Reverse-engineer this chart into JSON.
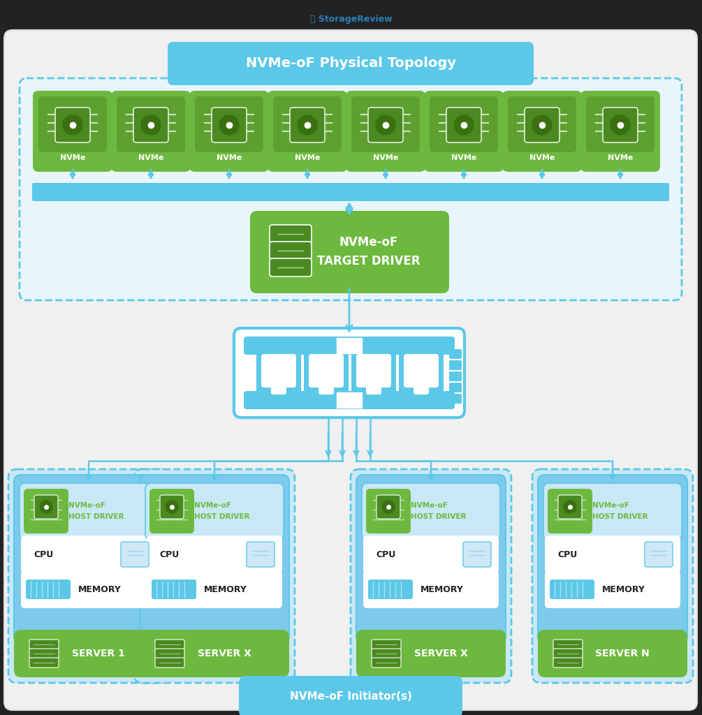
{
  "bg_outer": "#222222",
  "bg_main": "#e8e8e8",
  "title": "NVMe-oF Physical Topology",
  "title_bg": "#5bc8e8",
  "white": "#ffffff",
  "green": "#6db93f",
  "green_dark": "#4a8a20",
  "blue": "#5bc8e8",
  "blue_light": "#d6f0f8",
  "blue_mid": "#a8dff0",
  "nvme_labels": [
    "NVMe",
    "NVMe",
    "NVMe",
    "NVMe",
    "NVMe",
    "NVMe",
    "NVMe",
    "NVMe"
  ],
  "server_labels": [
    "SERVER 1",
    "SERVER X",
    "SERVER X",
    "SERVER N"
  ],
  "bottom_label": "NVMe-oF Initiator(s)",
  "watermark": "StorageReview"
}
